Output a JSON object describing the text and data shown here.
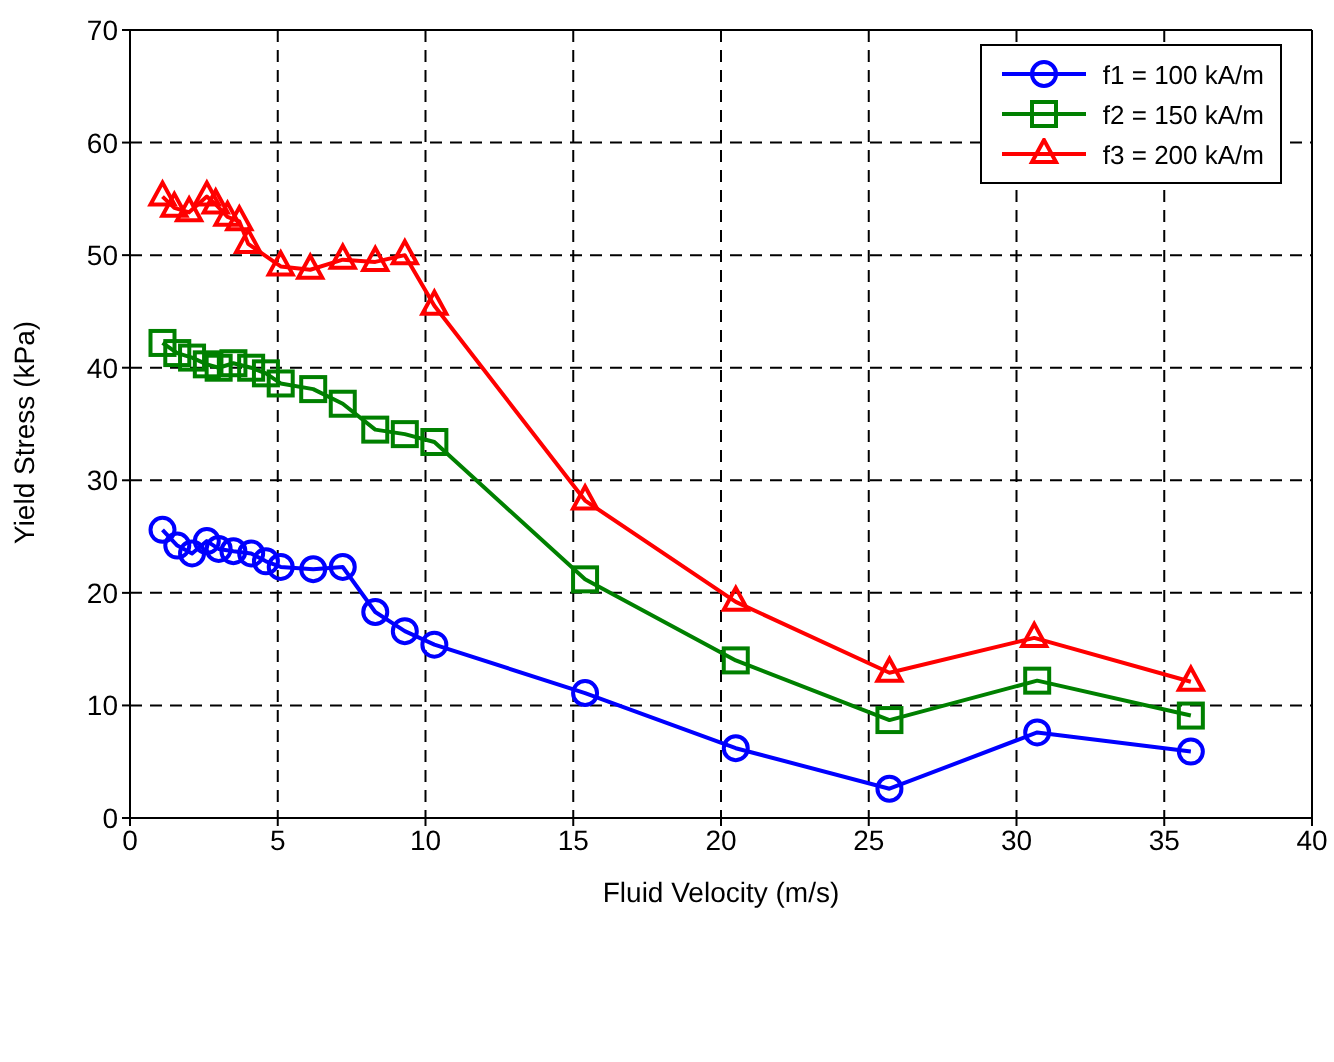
{
  "chart_data": {
    "type": "line",
    "xlabel": "Fluid Velocity (m/s)",
    "ylabel": "Yield Stress (kPa)",
    "xlim": [
      0,
      40
    ],
    "xticks": [
      0,
      5,
      10,
      15,
      20,
      25,
      30,
      35,
      40
    ],
    "ylim": [
      0,
      70
    ],
    "yticks": [
      0,
      10,
      20,
      30,
      40,
      50,
      60,
      70
    ],
    "grid": true,
    "legend": "top right",
    "line_style": "solid",
    "series": [
      {
        "name": "f1 = 100 kA/m",
        "color": "#0000ff",
        "marker": "circle",
        "x": [
          1.1,
          1.6,
          2.1,
          2.6,
          3.0,
          3.5,
          4.1,
          4.6,
          5.1,
          6.2,
          7.2,
          8.3,
          9.3,
          10.3,
          15.4,
          20.5,
          25.7,
          30.7,
          35.9
        ],
        "values": [
          25.6,
          24.2,
          23.5,
          24.6,
          23.9,
          23.7,
          23.5,
          22.8,
          22.3,
          22.1,
          22.3,
          18.3,
          16.6,
          15.4,
          11.1,
          6.2,
          2.6,
          7.6,
          5.9
        ]
      },
      {
        "name": "f2 = 150 kA/m",
        "color": "#008000",
        "marker": "square",
        "x": [
          1.1,
          1.6,
          2.1,
          2.6,
          3.0,
          3.5,
          4.1,
          4.6,
          5.1,
          6.2,
          7.2,
          8.3,
          9.3,
          10.3,
          15.4,
          20.5,
          25.7,
          30.7,
          35.9
        ],
        "values": [
          42.2,
          41.3,
          40.9,
          40.3,
          40.0,
          40.4,
          40.0,
          39.5,
          38.6,
          38.1,
          36.8,
          34.5,
          34.1,
          33.4,
          21.2,
          14.0,
          8.7,
          12.2,
          9.1
        ]
      },
      {
        "name": "f3 = 200 kA/m",
        "color": "#ff0000",
        "marker": "triangle",
        "x": [
          1.1,
          1.5,
          2.0,
          2.6,
          2.9,
          3.3,
          3.7,
          4.0,
          5.1,
          6.1,
          7.2,
          8.3,
          9.3,
          10.3,
          15.4,
          20.5,
          25.7,
          30.6,
          35.9
        ],
        "values": [
          55.2,
          54.2,
          53.8,
          55.2,
          54.5,
          53.4,
          53.0,
          51.0,
          49.0,
          48.7,
          49.6,
          49.4,
          50.0,
          45.5,
          28.2,
          19.2,
          12.9,
          16.0,
          12.1
        ]
      }
    ]
  }
}
